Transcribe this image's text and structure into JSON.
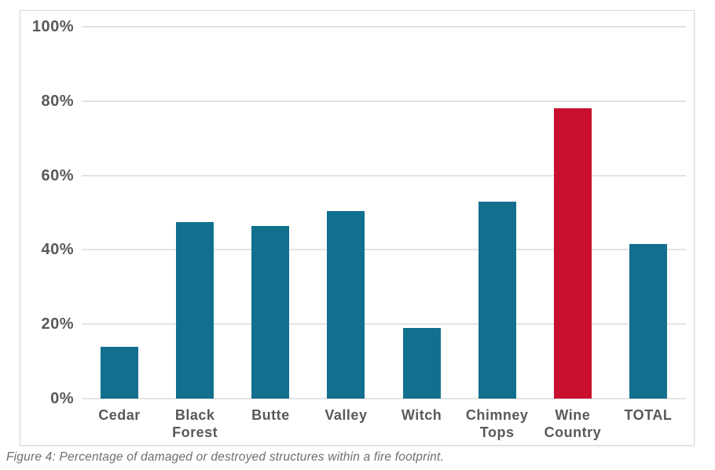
{
  "figure": {
    "caption": "Figure 4: Percentage of damaged or destroyed structures within a fire footprint."
  },
  "chart_data": {
    "type": "bar",
    "title": "",
    "xlabel": "",
    "ylabel": "",
    "categories": [
      "Cedar",
      "Black Forest",
      "Butte",
      "Valley",
      "Witch",
      "Chimney Tops",
      "Wine Country",
      "TOTAL"
    ],
    "values": [
      14,
      47.5,
      46.5,
      50.5,
      19,
      53,
      78,
      41.5
    ],
    "bar_colors": [
      "#12708E",
      "#12708E",
      "#12708E",
      "#12708E",
      "#12708E",
      "#12708E",
      "#C8102E",
      "#12708E"
    ],
    "highlight_category": "Wine Country",
    "ylim": [
      0,
      100
    ],
    "yticks": [
      {
        "value": 0,
        "label": "0%"
      },
      {
        "value": 20,
        "label": "20%"
      },
      {
        "value": 40,
        "label": "40%"
      },
      {
        "value": 60,
        "label": "60%"
      },
      {
        "value": 80,
        "label": "80%"
      },
      {
        "value": 100,
        "label": "100%"
      }
    ],
    "grid": true,
    "legend": false,
    "colors": {
      "bar": "#12708E",
      "highlight": "#C8102E",
      "gridline": "#e3e3e3",
      "axis_text": "#58595b",
      "caption_text": "#6d6e71",
      "panel_border": "#d8d8d8"
    }
  }
}
